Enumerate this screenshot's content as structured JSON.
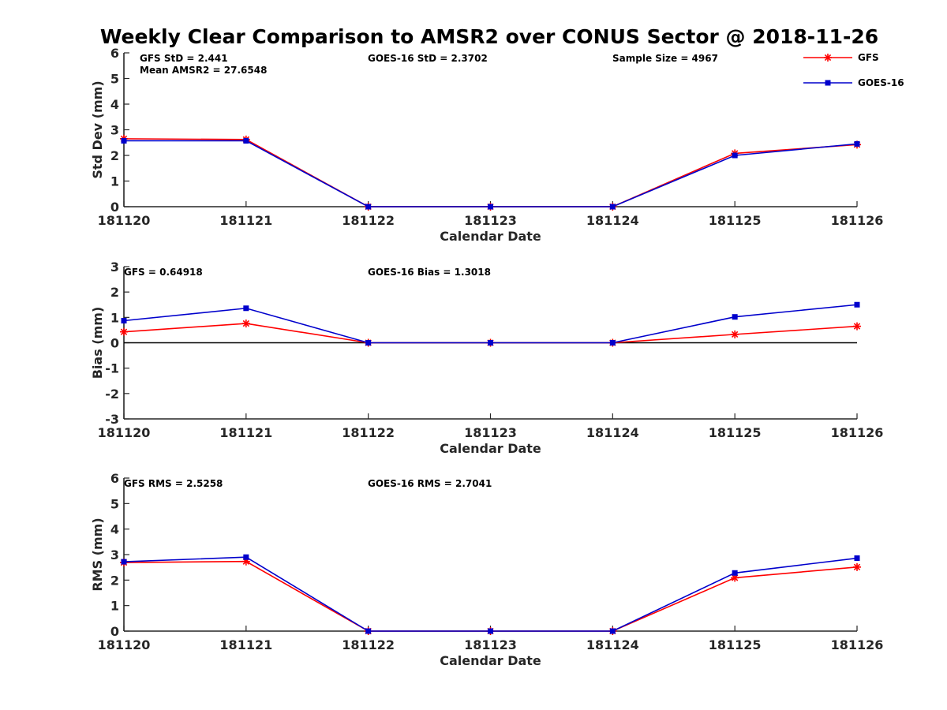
{
  "figure": {
    "title": "Weekly Clear Comparison to AMSR2 over CONUS Sector @ 2018-11-26"
  },
  "legend": {
    "position": "top-right",
    "entries": [
      {
        "name": "GFS",
        "color": "#ff0000",
        "marker": "asterisk"
      },
      {
        "name": "GOES-16",
        "color": "#0000cc",
        "marker": "square"
      }
    ]
  },
  "chart_data": [
    {
      "type": "line",
      "xlabel": "Calendar Date",
      "ylabel": "Std Dev (mm)",
      "categories": [
        "181120",
        "181121",
        "181122",
        "181123",
        "181124",
        "181125",
        "181126"
      ],
      "ylim": [
        0,
        6
      ],
      "yticks": [
        0,
        1,
        2,
        3,
        4,
        5,
        6
      ],
      "zero_line": false,
      "series": [
        {
          "name": "GFS",
          "color": "#ff0000",
          "marker": "asterisk",
          "values": [
            2.65,
            2.62,
            0,
            0,
            0,
            2.08,
            2.42
          ]
        },
        {
          "name": "GOES-16",
          "color": "#0000cc",
          "marker": "square",
          "values": [
            2.57,
            2.57,
            0,
            0,
            0,
            2.0,
            2.45
          ]
        }
      ],
      "annotations": [
        {
          "text": "GFS StD = 2.441",
          "anchor": "left"
        },
        {
          "text": "Mean AMSR2 = 27.6548",
          "anchor": "left-second-line"
        },
        {
          "text": "GOES-16 StD = 2.3702",
          "anchor": "center"
        },
        {
          "text": "Sample Size = 4967",
          "anchor": "right"
        }
      ]
    },
    {
      "type": "line",
      "xlabel": "Calendar Date",
      "ylabel": "Bias (mm)",
      "categories": [
        "181120",
        "181121",
        "181122",
        "181123",
        "181124",
        "181125",
        "181126"
      ],
      "ylim": [
        -3,
        3
      ],
      "yticks": [
        -3,
        -2,
        -1,
        0,
        1,
        2,
        3
      ],
      "zero_line": true,
      "series": [
        {
          "name": "GFS",
          "color": "#ff0000",
          "marker": "asterisk",
          "values": [
            0.43,
            0.76,
            0,
            0,
            0,
            0.33,
            0.65
          ]
        },
        {
          "name": "GOES-16",
          "color": "#0000cc",
          "marker": "square",
          "values": [
            0.87,
            1.36,
            0,
            0,
            0,
            1.02,
            1.5
          ]
        }
      ],
      "annotations": [
        {
          "text": "GFS = 0.64918",
          "anchor": "left"
        },
        {
          "text": "GOES-16 Bias  = 1.3018",
          "anchor": "center"
        }
      ]
    },
    {
      "type": "line",
      "xlabel": "Calendar Date",
      "ylabel": "RMS (mm)",
      "categories": [
        "181120",
        "181121",
        "181122",
        "181123",
        "181124",
        "181125",
        "181126"
      ],
      "ylim": [
        0,
        6
      ],
      "yticks": [
        0,
        1,
        2,
        3,
        4,
        5,
        6
      ],
      "zero_line": false,
      "series": [
        {
          "name": "GFS",
          "color": "#ff0000",
          "marker": "asterisk",
          "values": [
            2.69,
            2.73,
            0,
            0,
            0,
            2.09,
            2.51
          ]
        },
        {
          "name": "GOES-16",
          "color": "#0000cc",
          "marker": "square",
          "values": [
            2.72,
            2.9,
            0,
            0,
            0,
            2.28,
            2.86
          ]
        }
      ],
      "annotations": [
        {
          "text": "GFS RMS = 2.5258",
          "anchor": "left"
        },
        {
          "text": "GOES-16 RMS = 2.7041",
          "anchor": "center"
        }
      ]
    }
  ]
}
